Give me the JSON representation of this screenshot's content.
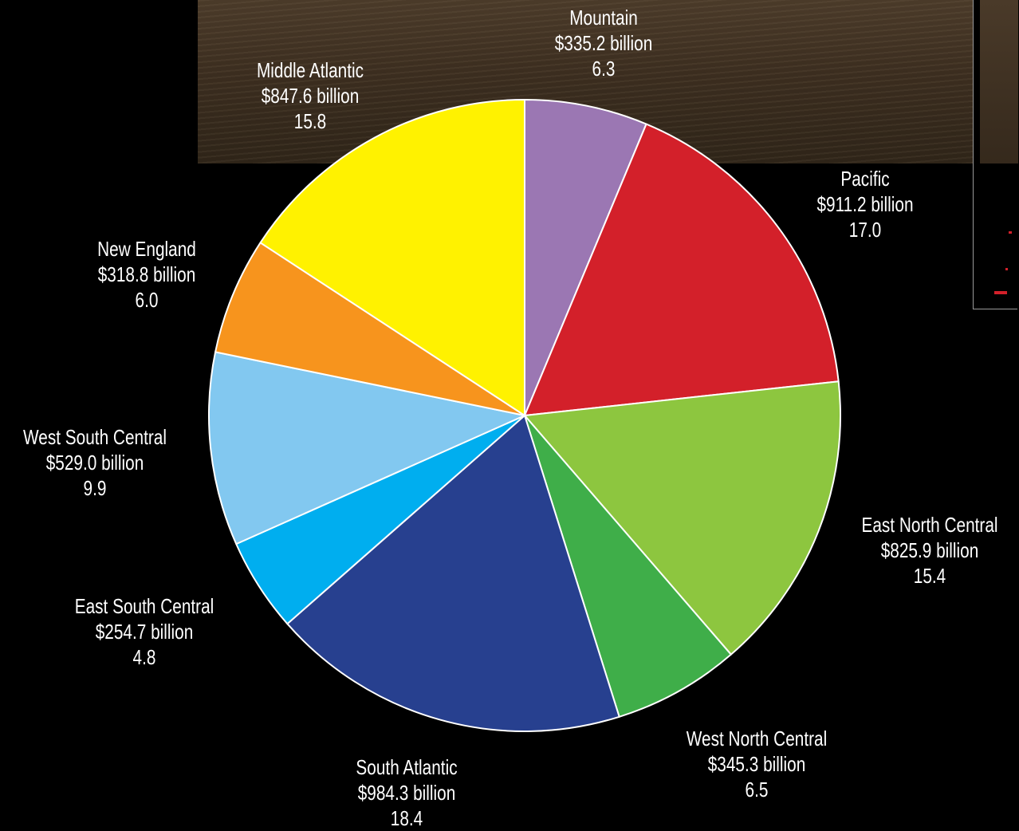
{
  "chart_data": {
    "type": "pie",
    "title": "",
    "slices": [
      {
        "label": "Mountain",
        "amount": "$335.2 billion",
        "share": "6.3",
        "value": 6.3,
        "color": "#9b77b3"
      },
      {
        "label": "Pacific",
        "amount": "$911.2 billion",
        "share": "17.0",
        "value": 17.0,
        "color": "#d3202a"
      },
      {
        "label": "East North Central",
        "amount": "$825.9 billion",
        "share": "15.4",
        "value": 15.4,
        "color": "#8dc63f"
      },
      {
        "label": "West North Central",
        "amount": "$345.3 billion",
        "share": "6.5",
        "value": 6.5,
        "color": "#3fae49"
      },
      {
        "label": "South Atlantic",
        "amount": "$984.3 billion",
        "share": "18.4",
        "value": 18.4,
        "color": "#27408f"
      },
      {
        "label": "East South Central",
        "amount": "$254.7 billion",
        "share": "4.8",
        "value": 4.8,
        "color": "#00aeef"
      },
      {
        "label": "West South Central",
        "amount": "$529.0 billion",
        "share": "9.9",
        "value": 9.9,
        "color": "#82c8f0"
      },
      {
        "label": "New England",
        "amount": "$318.8 billion",
        "share": "6.0",
        "value": 6.0,
        "color": "#f7941d"
      },
      {
        "label": "Middle Atlantic",
        "amount": "$847.6 billion",
        "share": "15.8",
        "value": 15.8,
        "color": "#fff200"
      }
    ],
    "start_angle": "top (12 o'clock)",
    "direction": "clockwise",
    "slice_border_color": "#ffffff",
    "background_color": "#000000",
    "label_color": "#ffffff"
  }
}
